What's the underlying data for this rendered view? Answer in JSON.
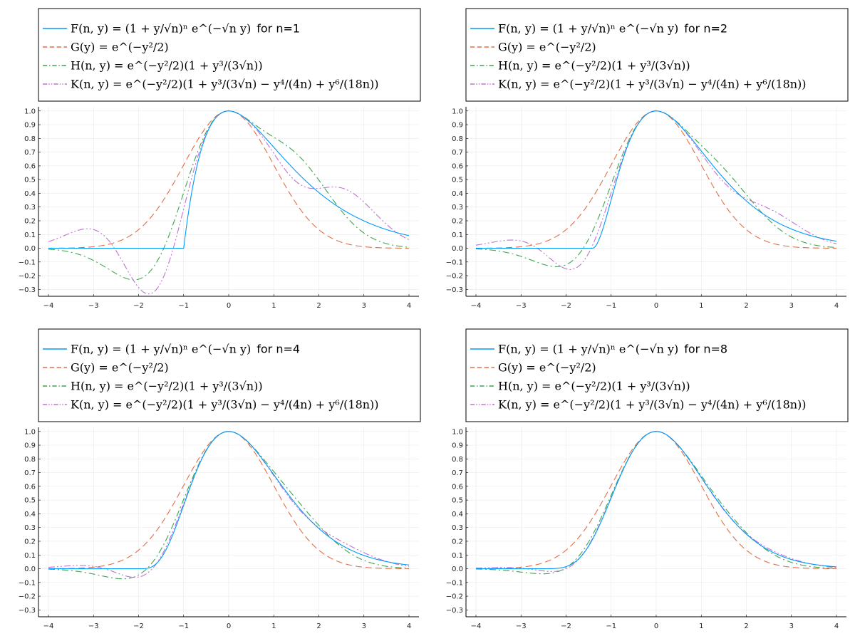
{
  "chart_data": [
    {
      "type": "line",
      "n": 1,
      "title": "",
      "xlabel": "",
      "ylabel": "",
      "xlim": [
        -4,
        4
      ],
      "ylim": [
        -0.35,
        1.03
      ],
      "xticks": [
        "-4",
        "-3",
        "-2",
        "-1",
        "0",
        "1",
        "2",
        "3",
        "4"
      ],
      "yticks": [
        "-0.3",
        "-0.2",
        "-0.1",
        "0.0",
        "0.1",
        "0.2",
        "0.3",
        "0.4",
        "0.5",
        "0.6",
        "0.7",
        "0.8",
        "0.9",
        "1.0"
      ],
      "grid": true,
      "legend_position": "top",
      "legend": [
        {
          "formula": "F(n, y) = (1 + y/√n)ⁿ e^(−√n y)",
          "suffix": "for n=1"
        },
        {
          "formula": "G(y) = e^(−y²/2)",
          "suffix": ""
        },
        {
          "formula": "H(n, y) = e^(−y²/2)(1 + y³/(3√n))",
          "suffix": ""
        },
        {
          "formula": "K(n, y) = e^(−y²/2)(1 + y³/(3√n) − y⁴/(4n) + y⁶/(18n))",
          "suffix": ""
        }
      ]
    },
    {
      "type": "line",
      "n": 2,
      "title": "",
      "xlabel": "",
      "ylabel": "",
      "xlim": [
        -4,
        4
      ],
      "ylim": [
        -0.35,
        1.03
      ],
      "xticks": [
        "-4",
        "-3",
        "-2",
        "-1",
        "0",
        "1",
        "2",
        "3",
        "4"
      ],
      "yticks": [
        "-0.3",
        "-0.2",
        "-0.1",
        "0.0",
        "0.1",
        "0.2",
        "0.3",
        "0.4",
        "0.5",
        "0.6",
        "0.7",
        "0.8",
        "0.9",
        "1.0"
      ],
      "grid": true,
      "legend_position": "top",
      "legend": [
        {
          "formula": "F(n, y) = (1 + y/√n)ⁿ e^(−√n y)",
          "suffix": "for n=2"
        },
        {
          "formula": "G(y) = e^(−y²/2)",
          "suffix": ""
        },
        {
          "formula": "H(n, y) = e^(−y²/2)(1 + y³/(3√n))",
          "suffix": ""
        },
        {
          "formula": "K(n, y) = e^(−y²/2)(1 + y³/(3√n) − y⁴/(4n) + y⁶/(18n))",
          "suffix": ""
        }
      ]
    },
    {
      "type": "line",
      "n": 4,
      "title": "",
      "xlabel": "",
      "ylabel": "",
      "xlim": [
        -4,
        4
      ],
      "ylim": [
        -0.35,
        1.03
      ],
      "xticks": [
        "-4",
        "-3",
        "-2",
        "-1",
        "0",
        "1",
        "2",
        "3",
        "4"
      ],
      "yticks": [
        "-0.3",
        "-0.2",
        "-0.1",
        "0.0",
        "0.1",
        "0.2",
        "0.3",
        "0.4",
        "0.5",
        "0.6",
        "0.7",
        "0.8",
        "0.9",
        "1.0"
      ],
      "grid": true,
      "legend_position": "top",
      "legend": [
        {
          "formula": "F(n, y) = (1 + y/√n)ⁿ e^(−√n y)",
          "suffix": "for n=4"
        },
        {
          "formula": "G(y) = e^(−y²/2)",
          "suffix": ""
        },
        {
          "formula": "H(n, y) = e^(−y²/2)(1 + y³/(3√n))",
          "suffix": ""
        },
        {
          "formula": "K(n, y) = e^(−y²/2)(1 + y³/(3√n) − y⁴/(4n) + y⁶/(18n))",
          "suffix": ""
        }
      ]
    },
    {
      "type": "line",
      "n": 8,
      "title": "",
      "xlabel": "",
      "ylabel": "",
      "xlim": [
        -4,
        4
      ],
      "ylim": [
        -0.35,
        1.03
      ],
      "xticks": [
        "-4",
        "-3",
        "-2",
        "-1",
        "0",
        "1",
        "2",
        "3",
        "4"
      ],
      "yticks": [
        "-0.3",
        "-0.2",
        "-0.1",
        "0.0",
        "0.1",
        "0.2",
        "0.3",
        "0.4",
        "0.5",
        "0.6",
        "0.7",
        "0.8",
        "0.9",
        "1.0"
      ],
      "grid": true,
      "legend_position": "top",
      "legend": [
        {
          "formula": "F(n, y) = (1 + y/√n)ⁿ e^(−√n y)",
          "suffix": "for n=8"
        },
        {
          "formula": "G(y) = e^(−y²/2)",
          "suffix": ""
        },
        {
          "formula": "H(n, y) = e^(−y²/2)(1 + y³/(3√n))",
          "suffix": ""
        },
        {
          "formula": "K(n, y) = e^(−y²/2)(1 + y³/(3√n) − y⁴/(4n) + y⁶/(18n))",
          "suffix": ""
        }
      ]
    }
  ],
  "series_styles": [
    {
      "key": "F",
      "color": "#009AFA",
      "dash": "solid"
    },
    {
      "key": "G",
      "color": "#E36F47",
      "dash": "dash"
    },
    {
      "key": "H",
      "color": "#3EA44E",
      "dash": "dashdot"
    },
    {
      "key": "K",
      "color": "#C271D2",
      "dash": "dashdotdot"
    }
  ]
}
